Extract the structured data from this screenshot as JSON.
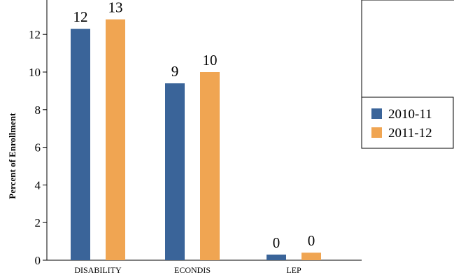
{
  "chart_data": {
    "type": "bar",
    "ylabel": "Percent of Enrollment",
    "xlabel": "",
    "categories": [
      "DISABILITY",
      "ECONDIS",
      "LEP"
    ],
    "series": [
      {
        "name": "2010-11",
        "color": "#3a6499",
        "values": [
          12.3,
          9.4,
          0.3
        ],
        "labels": [
          "12",
          "9",
          "0"
        ]
      },
      {
        "name": "2011-12",
        "color": "#f0a552",
        "values": [
          12.8,
          10.0,
          0.4
        ],
        "labels": [
          "13",
          "10",
          "0"
        ]
      }
    ],
    "ylim": [
      0,
      13.5
    ],
    "yticks": [
      0,
      2,
      4,
      6,
      8,
      10,
      12
    ],
    "grid": false,
    "legend_position": "right"
  }
}
